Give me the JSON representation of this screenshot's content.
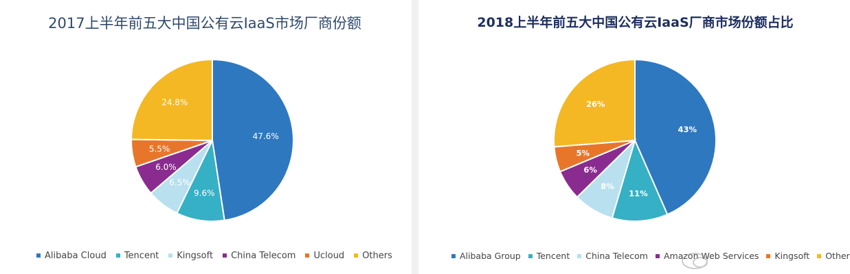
{
  "chart_data": [
    {
      "type": "pie",
      "title": "2017上半年前五大中国公有云IaaS市场厂商份额",
      "categories": [
        "Alibaba Cloud",
        "Tencent",
        "Kingsoft",
        "China Telecom",
        "Ucloud",
        "Others"
      ],
      "values": [
        47.6,
        9.6,
        6.5,
        6.0,
        5.5,
        24.8
      ],
      "labels": [
        "47.6%",
        "9.6%",
        "6.5%",
        "6.0%",
        "5.5%",
        "24.8%"
      ],
      "colors": [
        "#2e78bf",
        "#36b0c4",
        "#b8e0ee",
        "#8a2c8f",
        "#e8762a",
        "#f3b823"
      ],
      "legend_position": "bottom"
    },
    {
      "type": "pie",
      "title": "2018上半年前五大中国公有云IaaS厂商市场份额占比",
      "categories": [
        "Alibaba Group",
        "Tencent",
        "China Telecom",
        "Amazon Web Services",
        "Kingsoft",
        "Others"
      ],
      "values": [
        43,
        11,
        8,
        6,
        5,
        26
      ],
      "labels": [
        "43%",
        "11%",
        "8%",
        "6%",
        "5%",
        "26%"
      ],
      "colors": [
        "#2e78bf",
        "#36b0c4",
        "#b8e0ee",
        "#8a2c8f",
        "#e8762a",
        "#f3b823"
      ],
      "legend_position": "bottom"
    }
  ],
  "watermark": {
    "icon": "speech-bubbles-icon"
  }
}
